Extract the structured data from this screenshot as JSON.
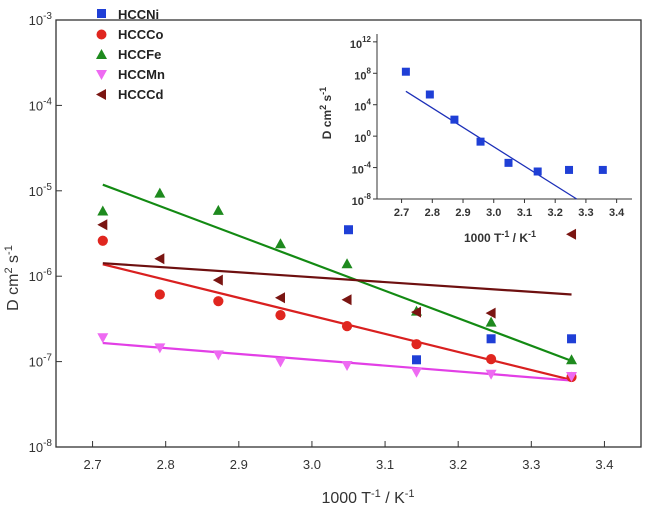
{
  "chart_data": [
    {
      "type": "scatter",
      "xlabel_main": "1000 T",
      "xlabel_sup": "-1",
      "xlabel_mid": " / K",
      "xlabel_sup2": "-1",
      "ylabel_main": "D cm",
      "ylabel_sup": "2",
      "ylabel_mid": " s",
      "ylabel_sup2": "-1",
      "xlim": [
        2.65,
        3.45
      ],
      "ylim_exp": [
        -8,
        -3
      ],
      "y_scale": "log",
      "legend_position": "top-left",
      "x_ticks": [
        2.7,
        2.8,
        2.9,
        3.0,
        3.1,
        3.2,
        3.3,
        3.4
      ],
      "x_tick_labels": [
        "2.7",
        "2.8",
        "2.9",
        "3.0",
        "3.1",
        "3.2",
        "3.3",
        "3.4"
      ],
      "y_tick_mantissa": [
        "10",
        "10",
        "10",
        "10",
        "10",
        "10"
      ],
      "y_tick_exp": [
        "-8",
        "-7",
        "-6",
        "-5",
        "-4",
        "-3"
      ],
      "y_tick_values": [
        -8,
        -7,
        -6,
        -5,
        -4,
        -3
      ],
      "series": [
        {
          "name": "HCCNi",
          "marker": "square",
          "color": "#1f3fd6",
          "x": [
            3.05,
            3.143,
            3.245,
            3.355
          ],
          "y": [
            3.5e-06,
            1.05e-07,
            1.85e-07,
            1.85e-07
          ]
        },
        {
          "name": "HCCCo",
          "marker": "circle",
          "color": "#e0261f",
          "x": [
            2.714,
            2.792,
            2.872,
            2.957,
            3.048,
            3.143,
            3.245,
            3.355
          ],
          "y": [
            2.6e-06,
            6.1e-07,
            5.1e-07,
            3.5e-07,
            2.6e-07,
            1.6e-07,
            1.07e-07,
            6.6e-08
          ],
          "fit": {
            "x": [
              2.714,
              3.355
            ],
            "y": [
              1.38e-06,
              6.1e-08
            ]
          }
        },
        {
          "name": "HCCFe",
          "marker": "triangle-up",
          "color": "#1e8a1e",
          "x": [
            2.714,
            2.792,
            2.872,
            2.957,
            3.048,
            3.143,
            3.245,
            3.355
          ],
          "y": [
            5.8e-06,
            9.4e-06,
            5.9e-06,
            2.4e-06,
            1.4e-06,
            3.9e-07,
            2.9e-07,
            1.05e-07
          ],
          "fit": {
            "x": [
              2.714,
              3.355
            ],
            "y": [
              1.18e-05,
              1.02e-07
            ]
          }
        },
        {
          "name": "HCCMn",
          "marker": "triangle-down",
          "color": "#ee6af2",
          "x": [
            2.714,
            2.792,
            2.872,
            2.957,
            3.048,
            3.143,
            3.245,
            3.355
          ],
          "y": [
            1.9e-07,
            1.45e-07,
            1.2e-07,
            9.9e-08,
            9e-08,
            7.5e-08,
            7.1e-08,
            6.7e-08
          ],
          "fit": {
            "x": [
              2.714,
              3.355
            ],
            "y": [
              1.65e-07,
              6e-08
            ]
          }
        },
        {
          "name": "HCCCd",
          "marker": "triangle-left",
          "color": "#7a1512",
          "x": [
            2.714,
            2.792,
            2.872,
            2.957,
            3.048,
            3.143,
            3.245,
            3.355
          ],
          "y": [
            4e-06,
            1.6e-06,
            9e-07,
            5.6e-07,
            5.3e-07,
            3.8e-07,
            3.7e-07,
            3.1e-06
          ],
          "fit": {
            "x": [
              2.714,
              3.355
            ],
            "y": [
              1.42e-06,
              6.1e-07
            ]
          }
        }
      ],
      "colors": {
        "axis": "#333333",
        "fit_ni": "#1c2fb8",
        "fit_co": "#d92020",
        "fit_fe": "#138a13",
        "fit_mn": "#e23fe6",
        "fit_cd": "#6e1010"
      }
    },
    {
      "type": "scatter",
      "role": "inset",
      "xlim": [
        2.62,
        3.45
      ],
      "ylim_exp": [
        -8,
        13
      ],
      "y_scale": "log",
      "x_ticks": [
        2.7,
        2.8,
        2.9,
        3.0,
        3.1,
        3.2,
        3.3,
        3.4
      ],
      "x_tick_labels": [
        "2.7",
        "2.8",
        "2.9",
        "3.0",
        "3.1",
        "3.2",
        "3.3",
        "3.4"
      ],
      "y_tick_mantissa": [
        "10",
        "10",
        "10",
        "10",
        "10"
      ],
      "y_tick_exp": [
        "-8",
        "-4",
        "0",
        "4",
        "8"
      ],
      "y_tick_values": [
        -8,
        -4,
        0,
        4,
        8
      ],
      "y_tick_mantissa_top": "10",
      "y_tick_exp_top": "12",
      "y_tick_value_top": 12,
      "series": [
        {
          "name": "HCCNi",
          "marker": "square",
          "color": "#1f3fd6",
          "x": [
            2.714,
            2.792,
            2.872,
            2.957,
            3.048,
            3.143,
            3.245,
            3.355
          ],
          "y_exp": [
            8.2,
            5.3,
            2.1,
            -0.7,
            -3.4,
            -4.5,
            -4.3,
            -4.3
          ],
          "fit": {
            "x": [
              2.714,
              3.27
            ],
            "y_exp": [
              5.7,
              -8.0
            ]
          }
        }
      ]
    }
  ]
}
